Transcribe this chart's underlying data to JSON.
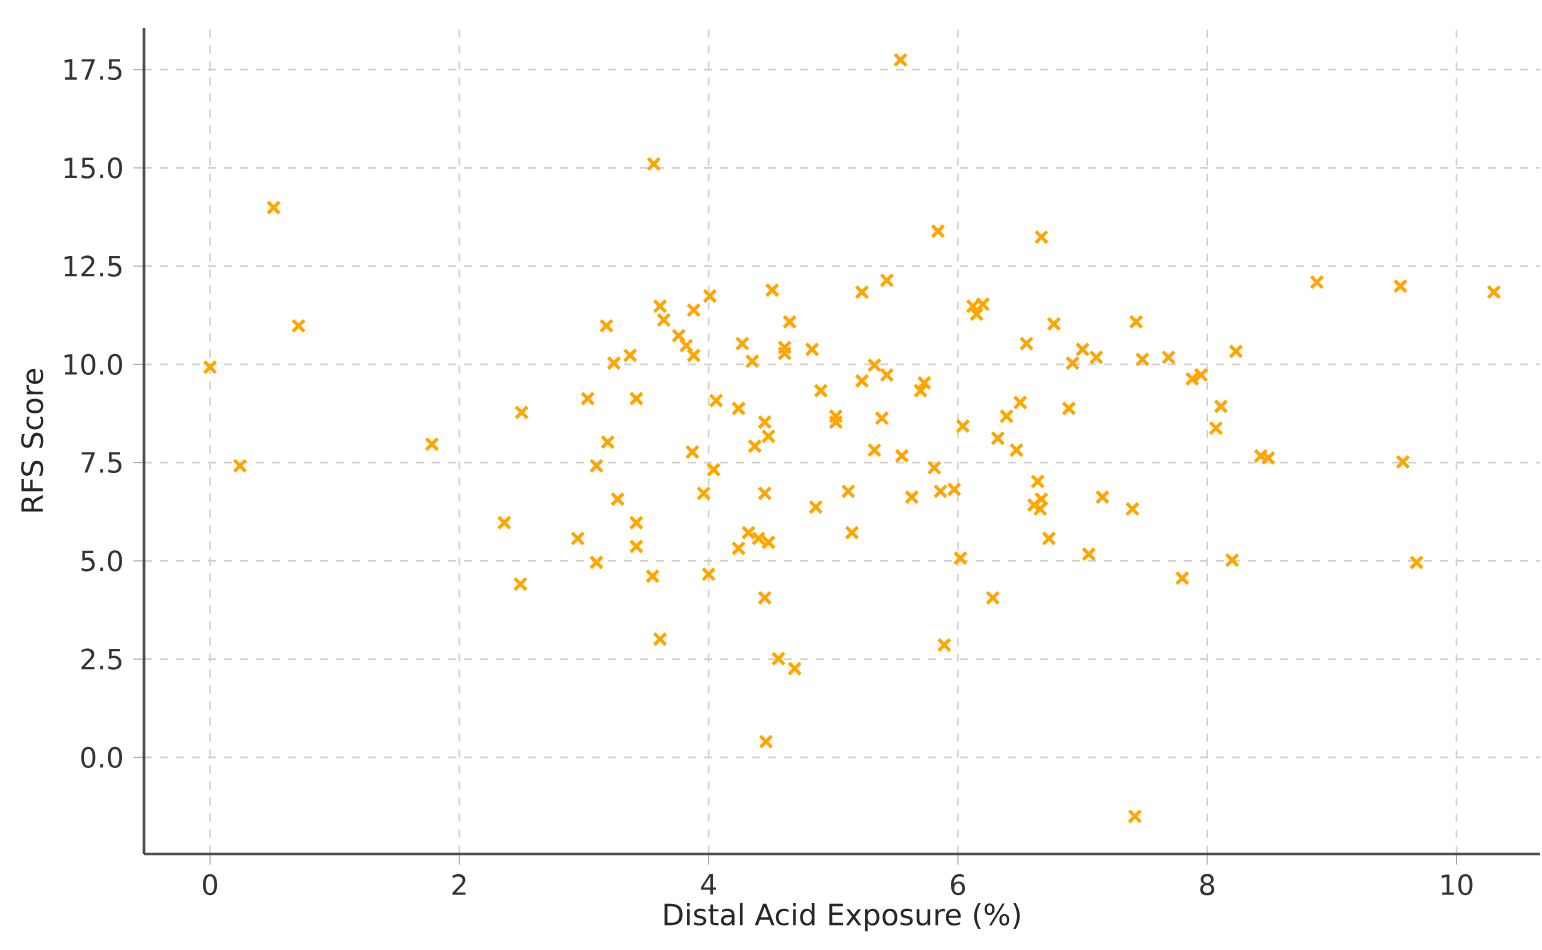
{
  "chart_data": {
    "type": "scatter",
    "xlabel": "Distal Acid Exposure (%)",
    "ylabel": "RFS Score",
    "xlim": [
      -0.53,
      10.67
    ],
    "ylim": [
      -2.46,
      18.56
    ],
    "xticks": [
      0,
      2,
      4,
      6,
      8,
      10
    ],
    "yticks": [
      {
        "value": 0,
        "label": "0.0"
      },
      {
        "value": 2.5,
        "label": "2.5"
      },
      {
        "value": 5,
        "label": "5.0"
      },
      {
        "value": 7.5,
        "label": "7.5"
      },
      {
        "value": 10,
        "label": "10.0"
      },
      {
        "value": 12.5,
        "label": "12.5"
      },
      {
        "value": 15,
        "label": "15.0"
      },
      {
        "value": 17.5,
        "label": "17.5"
      }
    ],
    "grid": true,
    "marker": "cross",
    "series": [
      {
        "color": "#ffa500",
        "x": [
          0.0,
          0.24,
          0.51,
          0.71,
          1.78,
          2.36,
          2.5,
          2.49,
          2.95,
          3.03,
          3.1,
          3.1,
          3.18,
          3.19,
          3.24,
          3.27,
          3.37,
          3.42,
          3.42,
          3.42,
          3.55,
          3.56,
          3.61,
          3.64,
          3.61,
          3.76,
          3.82,
          3.87,
          3.88,
          3.88,
          3.96,
          4.0,
          4.01,
          4.06,
          4.04,
          4.24,
          4.24,
          4.27,
          4.32,
          4.35,
          4.37,
          4.4,
          4.45,
          4.45,
          4.45,
          4.46,
          4.48,
          4.48,
          4.51,
          4.56,
          4.61,
          4.61,
          4.65,
          4.69,
          4.83,
          4.86,
          4.9,
          5.02,
          5.02,
          5.12,
          5.15,
          5.23,
          5.23,
          5.33,
          5.33,
          5.39,
          5.43,
          5.43,
          5.54,
          5.55,
          5.63,
          5.7,
          5.73,
          5.81,
          5.84,
          5.86,
          5.89,
          5.97,
          6.02,
          6.04,
          6.12,
          6.15,
          6.2,
          6.28,
          6.32,
          6.39,
          6.47,
          6.5,
          6.55,
          6.61,
          6.64,
          6.66,
          6.67,
          6.67,
          6.73,
          6.77,
          6.89,
          6.92,
          7.0,
          7.05,
          7.11,
          7.16,
          7.4,
          7.43,
          7.48,
          7.42,
          7.69,
          7.8,
          7.88,
          7.95,
          8.07,
          8.11,
          8.2,
          8.23,
          8.43,
          8.49,
          8.88,
          9.55,
          9.57,
          9.68,
          10.3
        ],
        "values": [
          9.93,
          7.42,
          13.99,
          10.98,
          7.97,
          5.97,
          8.78,
          4.41,
          5.57,
          9.13,
          7.42,
          4.96,
          10.98,
          8.02,
          10.03,
          6.57,
          10.23,
          9.13,
          5.97,
          5.37,
          4.61,
          15.1,
          11.48,
          11.13,
          3.01,
          10.73,
          10.48,
          7.77,
          11.38,
          10.23,
          6.72,
          4.66,
          11.74,
          9.08,
          7.32,
          8.88,
          5.32,
          10.53,
          5.72,
          10.08,
          7.92,
          5.57,
          8.53,
          6.72,
          4.06,
          0.4,
          8.17,
          5.47,
          11.89,
          2.51,
          10.43,
          10.28,
          11.08,
          2.26,
          10.38,
          6.37,
          9.33,
          8.68,
          8.53,
          6.77,
          5.72,
          11.84,
          9.58,
          9.98,
          7.82,
          8.63,
          9.73,
          12.14,
          17.75,
          7.67,
          6.62,
          9.33,
          9.53,
          7.37,
          13.39,
          6.77,
          2.86,
          6.82,
          5.07,
          8.43,
          11.48,
          11.28,
          11.53,
          4.06,
          8.12,
          8.68,
          7.82,
          9.03,
          10.53,
          6.42,
          7.02,
          6.32,
          6.57,
          13.24,
          5.57,
          11.03,
          8.88,
          10.03,
          10.38,
          5.17,
          10.18,
          6.62,
          6.32,
          11.08,
          10.13,
          -1.5,
          10.18,
          4.56,
          9.63,
          9.73,
          8.38,
          8.93,
          5.02,
          10.33,
          7.67,
          7.62,
          12.09,
          11.99,
          7.52,
          4.96,
          11.84
        ]
      }
    ]
  }
}
